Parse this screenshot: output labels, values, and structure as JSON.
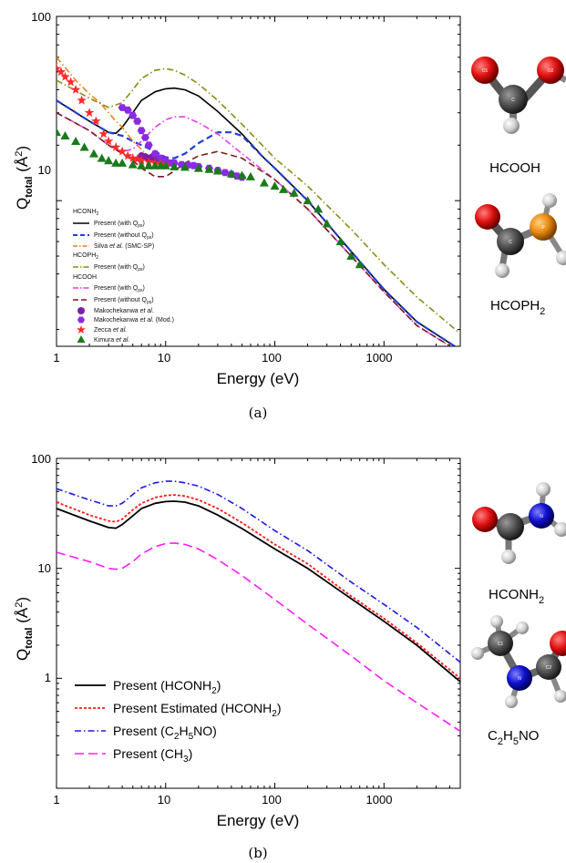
{
  "colors": {
    "present_with": "#000000",
    "present_without": "#1f3fd8",
    "silva": "#f07f1a",
    "hcoph2_with": "#8a8a18",
    "hcooh_with": "#e13fe1",
    "hcooh_without": "#7a1c1c",
    "makochekanawa": "#7a1fa6",
    "makochekanawa_mod": "#8a2be2",
    "zecca": "#ff2a2a",
    "kimura": "#1a7a1a",
    "estimated": "#ff1a1a",
    "c2h5no": "#1a1ae6",
    "ch3": "#ff1aff"
  },
  "labels": {
    "panel_a": "(a)",
    "panel_b": "(b)",
    "mol_hcooh": "HCOOH",
    "mol_hcoph2": "HCOPH",
    "mol_hcoph2_sub": "2",
    "mol_hconh2": "HCONH",
    "mol_hconh2_sub": "2",
    "mol_c2h5no_1": "C",
    "mol_c2h5no_2": "H",
    "mol_c2h5no_3": "NO",
    "sub2": "2",
    "sub5": "5",
    "atoms": {
      "o1": "O1",
      "o2": "O2",
      "c": "C",
      "h1": "H1",
      "p": "P",
      "n": "N",
      "h": "H",
      "c1": "C1",
      "c2": "C2"
    }
  },
  "chart_data": [
    {
      "type": "line",
      "panel": "(a)",
      "xlabel": "Energy (eV)",
      "ylabel_main": "Q",
      "ylabel_sub": "total",
      "ylabel_unit": "(Å",
      "ylabel_unit_sup": "2",
      "ylabel_close": ")",
      "x_scale": "log",
      "y_scale": "log",
      "xlim": [
        1,
        5000
      ],
      "ylim": [
        1.62,
        100
      ],
      "x_ticks": [
        1,
        10,
        100,
        1000
      ],
      "x_tick_labels": [
        "1",
        "10",
        "100",
        "1000"
      ],
      "y_ticks": [
        10,
        100
      ],
      "y_tick_labels": [
        "10",
        "100"
      ],
      "legend_position": "lower-left",
      "legend_headers": {
        "hconh2": "HCONH",
        "hconh2_sub": "2",
        "hcoph2": "HCOPH",
        "hcoph2_sub": "2",
        "hcooh": "HCOOH"
      },
      "legend_entries": {
        "hconh2_with": "Present (with Q",
        "hconh2_with_sub": "ps",
        "hconh2_without": "Present (without Q",
        "hconh2_without_sub": "ps",
        "silva_a": "Silva ",
        "silva_b": "et al.",
        "silva_c": " (SMC-SP)",
        "hcoph2_with": "Present (with Q",
        "hcoph2_with_sub": "ps",
        "hcooh_with": "Present (with Q",
        "hcooh_with_sub": "ps",
        "hcooh_without": "Present (without Q",
        "hcooh_without_sub": "ps",
        "mako_a": "Makochekanwa ",
        "mako_b": "et al.",
        "makomod_a": "Makochekanwa ",
        "makomod_b": "et al.",
        "makomod_c": " (Mod.)",
        "zecca_a": "Zecca ",
        "zecca_b": "et al.",
        "kimura_a": "Kimura ",
        "kimura_b": "et al.",
        "ps_close": ")"
      },
      "series": [
        {
          "id": "hconh2_with",
          "style": "solid",
          "x": [
            1,
            2,
            3,
            3.5,
            4,
            5,
            6,
            8,
            10,
            12,
            15,
            20,
            30,
            50,
            80,
            100,
            200,
            500,
            1000,
            2000,
            5000
          ],
          "y": [
            35,
            27,
            23.5,
            23.2,
            25,
            30,
            35,
            39,
            40.5,
            40.8,
            40,
            37,
            30.5,
            23,
            17,
            15,
            10,
            5.3,
            3.3,
            2.2,
            1.55
          ]
        },
        {
          "id": "hconh2_without",
          "style": "dash",
          "x": [
            1,
            2,
            3,
            4,
            5,
            6,
            8,
            10,
            12,
            15,
            20,
            30,
            40,
            50,
            80,
            100,
            200,
            500,
            1000,
            2000,
            5000
          ],
          "y": [
            35,
            27,
            23.5,
            22.5,
            21,
            20,
            18.5,
            17.2,
            17,
            18,
            20.5,
            23.5,
            23.5,
            22.5,
            17,
            15,
            10,
            5.3,
            3.3,
            2.2,
            1.55
          ]
        },
        {
          "id": "silva",
          "style": "dashdot",
          "x": [
            1,
            1.5,
            2,
            2.5,
            3,
            3.5,
            4,
            5,
            6,
            7,
            8,
            9,
            10
          ],
          "y": [
            60,
            45,
            38,
            34,
            30,
            27,
            25,
            21,
            19,
            17,
            16,
            15.5,
            15
          ]
        },
        {
          "id": "hcoph2_with",
          "style": "dashdot",
          "x": [
            1,
            2,
            3,
            4,
            5,
            6,
            8,
            10,
            12,
            15,
            20,
            30,
            50,
            100,
            200,
            500,
            1000,
            2000,
            5000
          ],
          "y": [
            45,
            36,
            32,
            34,
            40,
            46,
            51,
            52,
            51,
            48,
            43,
            35,
            26,
            17,
            12,
            7,
            4.5,
            3,
            1.9
          ]
        },
        {
          "id": "hcooh_with",
          "style": "dashdot",
          "x": [
            1,
            2,
            3,
            4,
            5,
            6,
            8,
            10,
            12,
            15,
            20,
            30,
            50,
            100,
            200,
            500,
            1000,
            2000,
            5000
          ],
          "y": [
            30,
            24,
            20,
            18.5,
            19,
            21,
            25,
            27.5,
            28.5,
            28.5,
            26.5,
            23,
            18,
            13,
            9,
            5,
            3.2,
            2.1,
            1.5
          ]
        },
        {
          "id": "hcooh_without",
          "style": "dash",
          "x": [
            1,
            2,
            3,
            4,
            5,
            6,
            8,
            10,
            12,
            15,
            20,
            30,
            50,
            100,
            200,
            500,
            1000,
            2000,
            5000
          ],
          "y": [
            30,
            24,
            20,
            18,
            16.5,
            15,
            13.5,
            13.5,
            14.5,
            16,
            17.5,
            18.5,
            17,
            13,
            9,
            5,
            3.2,
            2.1,
            1.5
          ]
        }
      ],
      "points": [
        {
          "id": "makochekanawa",
          "marker": "circle",
          "x": [
            6,
            6.5,
            7,
            7.5,
            8,
            8.5,
            9,
            9.5
          ],
          "y": [
            17.5,
            17.3,
            17,
            17.2,
            17,
            16.8,
            17,
            16.7
          ]
        },
        {
          "id": "makochekanawa_mod",
          "marker": "hexagon",
          "x": [
            4,
            4.5,
            5,
            5.5,
            6,
            6.5,
            7,
            8,
            9,
            10,
            11,
            12,
            14,
            16,
            18,
            20,
            25,
            30,
            35,
            40,
            45,
            50
          ],
          "y": [
            32,
            31,
            29,
            27,
            24,
            22,
            20,
            18,
            17,
            16.5,
            16,
            16,
            15.7,
            15.6,
            15.5,
            15.3,
            15,
            14.6,
            14.2,
            13.9,
            13.6,
            13.4
          ]
        },
        {
          "id": "zecca",
          "marker": "star",
          "x": [
            1,
            1.1,
            1.2,
            1.35,
            1.5,
            1.7,
            2,
            2.3,
            2.7,
            3,
            3.5,
            4,
            4.5,
            5,
            5.5,
            6,
            7,
            8,
            9,
            10
          ],
          "y": [
            52,
            50,
            47,
            44,
            40,
            35,
            30,
            27,
            23,
            21,
            19.5,
            18.5,
            17.5,
            17,
            16.8,
            16.5,
            16.2,
            16,
            15.8,
            15.5
          ]
        },
        {
          "id": "kimura",
          "marker": "triangle",
          "x": [
            1,
            1.2,
            1.5,
            1.8,
            2.2,
            2.6,
            3,
            3.5,
            4,
            5,
            6,
            7,
            8,
            9,
            10,
            12,
            15,
            20,
            25,
            30,
            40,
            50,
            60,
            80,
            100,
            120,
            150,
            200,
            250,
            300,
            400,
            500,
            600
          ],
          "y": [
            23.5,
            22.5,
            21,
            19.5,
            18,
            17,
            16.5,
            16,
            16,
            15.7,
            15.5,
            15.5,
            15.5,
            15.5,
            15.5,
            15.3,
            15.2,
            15,
            14.8,
            14.5,
            14,
            13.7,
            13.5,
            12.5,
            12,
            11.5,
            11,
            10,
            9,
            7.5,
            6,
            5,
            4.5
          ]
        }
      ]
    },
    {
      "type": "line",
      "panel": "(b)",
      "xlabel": "Energy (eV)",
      "ylabel_main": "Q",
      "ylabel_sub": "total",
      "ylabel_unit": "(Å",
      "ylabel_unit_sup": "2",
      "ylabel_close": ")",
      "x_scale": "log",
      "y_scale": "log",
      "xlim": [
        1,
        5000
      ],
      "ylim": [
        0.1,
        100
      ],
      "x_ticks": [
        1,
        10,
        100,
        1000
      ],
      "x_tick_labels": [
        "1",
        "10",
        "100",
        "1000"
      ],
      "y_ticks": [
        1,
        10,
        100
      ],
      "y_tick_labels": [
        "1",
        "10",
        "100"
      ],
      "legend_position": "lower-left",
      "legend_entries": {
        "s1_a": "Present (HCONH",
        "s1_sub": "2",
        "s1_c": ")",
        "s2_a": "Present Estimated (HCONH",
        "s2_sub": "2",
        "s2_c": ")",
        "s3_a": "Present (C",
        "s3_sub1": "2",
        "s3_b": "H",
        "s3_sub2": "5",
        "s3_c": "NO)",
        "s4_a": "Present (CH",
        "s4_sub": "3",
        "s4_c": ")"
      },
      "series": [
        {
          "id": "hconh2",
          "style": "solid",
          "x": [
            1,
            2,
            3,
            3.5,
            4,
            5,
            6,
            8,
            10,
            12,
            15,
            20,
            30,
            50,
            100,
            200,
            500,
            1000,
            2000,
            5000
          ],
          "y": [
            35,
            27,
            23.5,
            23.2,
            25,
            30,
            35,
            39,
            40.5,
            40.8,
            40,
            37,
            30.5,
            23,
            15,
            10,
            5.3,
            3.3,
            2,
            0.93
          ]
        },
        {
          "id": "estimated",
          "style": "shortdash",
          "x": [
            1,
            2,
            3,
            3.5,
            4,
            5,
            6,
            8,
            10,
            12,
            15,
            20,
            30,
            50,
            100,
            200,
            500,
            1000,
            2000,
            5000
          ],
          "y": [
            40,
            30.5,
            27,
            26.5,
            28,
            34,
            39,
            44,
            46,
            46.5,
            45.5,
            42,
            35,
            26,
            16.5,
            11,
            5.6,
            3.5,
            2.1,
            1.0
          ]
        },
        {
          "id": "c2h5no",
          "style": "dashdot",
          "x": [
            1,
            2,
            3,
            3.5,
            4,
            5,
            6,
            8,
            10,
            12,
            15,
            20,
            30,
            50,
            100,
            200,
            500,
            1000,
            2000,
            5000
          ],
          "y": [
            53,
            42,
            37,
            37,
            39,
            47,
            54,
            60,
            62,
            62,
            60,
            56,
            47,
            35,
            22,
            14.5,
            7.5,
            4.7,
            2.9,
            1.4
          ]
        },
        {
          "id": "ch3",
          "style": "longdash",
          "x": [
            1,
            2,
            3,
            3.5,
            4,
            5,
            6,
            8,
            10,
            12,
            15,
            20,
            30,
            50,
            100,
            200,
            500,
            1000,
            2000,
            5000
          ],
          "y": [
            14,
            11.5,
            10,
            9.8,
            10,
            11.5,
            13.5,
            15.8,
            16.8,
            17,
            16.5,
            15,
            12,
            8.6,
            5.2,
            3.1,
            1.6,
            0.95,
            0.6,
            0.33
          ]
        }
      ]
    }
  ]
}
